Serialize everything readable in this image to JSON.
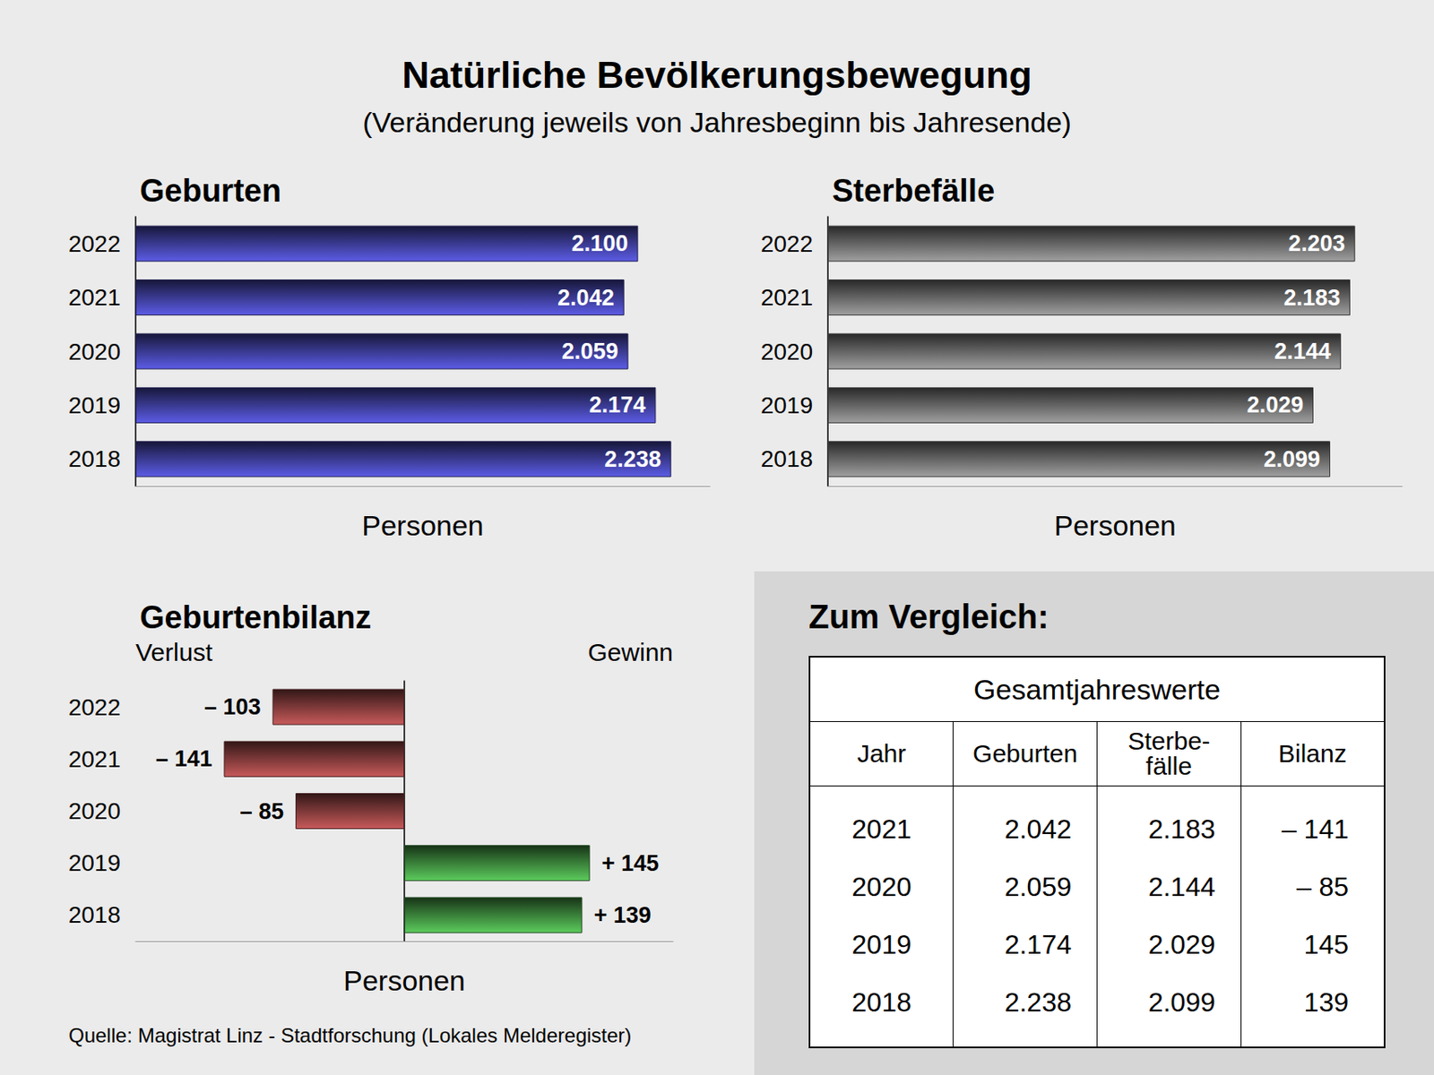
{
  "title": "Natürliche Bevölkerungsbewegung",
  "subtitle": "(Veränderung jeweils von Jahresbeginn bis Jahresende)",
  "chart_data": [
    {
      "type": "bar",
      "title": "Geburten",
      "orientation": "horizontal",
      "categories": [
        "2022",
        "2021",
        "2020",
        "2019",
        "2018"
      ],
      "values": [
        2100,
        2042,
        2059,
        2174,
        2238
      ],
      "value_labels": [
        "2.100",
        "2.042",
        "2.059",
        "2.174",
        "2.238"
      ],
      "data_labels": true,
      "color": "#5c5ce6",
      "xlabel": "Personen",
      "xlim": [
        0,
        2400
      ],
      "tick_labels": "y",
      "grid": false
    },
    {
      "type": "bar",
      "title": "Sterbefälle",
      "orientation": "horizontal",
      "categories": [
        "2022",
        "2021",
        "2020",
        "2019",
        "2018"
      ],
      "values": [
        2203,
        2183,
        2144,
        2029,
        2099
      ],
      "value_labels": [
        "2.203",
        "2.183",
        "2.144",
        "2.029",
        "2.099"
      ],
      "data_labels": true,
      "color": "#a0a0a0",
      "xlabel": "Personen",
      "xlim": [
        0,
        2400
      ],
      "tick_labels": "y",
      "grid": false
    },
    {
      "type": "bar",
      "title": "Geburtenbilanz",
      "orientation": "horizontal",
      "annotations": [
        "Verlust",
        "Gewinn"
      ],
      "categories": [
        "2022",
        "2021",
        "2020",
        "2019",
        "2018"
      ],
      "values": [
        -103,
        -141,
        -85,
        145,
        139
      ],
      "value_labels": [
        "– 103",
        "– 141",
        "– 85",
        "+ 145",
        "+ 139"
      ],
      "data_labels": true,
      "colors": [
        "#c85a5a",
        "#c85a5a",
        "#c85a5a",
        "#5ccc5c",
        "#5ccc5c"
      ],
      "xlabel": "Personen",
      "xlim": [
        -210,
        210
      ],
      "tick_labels": "y",
      "grid": false
    }
  ],
  "comparison": {
    "title": "Zum Vergleich:",
    "table": {
      "title": "Gesamtjahreswerte",
      "columns": [
        "Jahr",
        "Geburten",
        "Sterbe-\nfälle",
        "Bilanz"
      ],
      "rows": [
        [
          "2021",
          "2.042",
          "2.183",
          "– 141"
        ],
        [
          "2020",
          "2.059",
          "2.144",
          "– 85"
        ],
        [
          "2019",
          "2.174",
          "2.029",
          "145"
        ],
        [
          "2018",
          "2.238",
          "2.099",
          "139"
        ]
      ]
    }
  },
  "source": "Quelle: Magistrat Linz - Stadtforschung (Lokales Melderegister)"
}
